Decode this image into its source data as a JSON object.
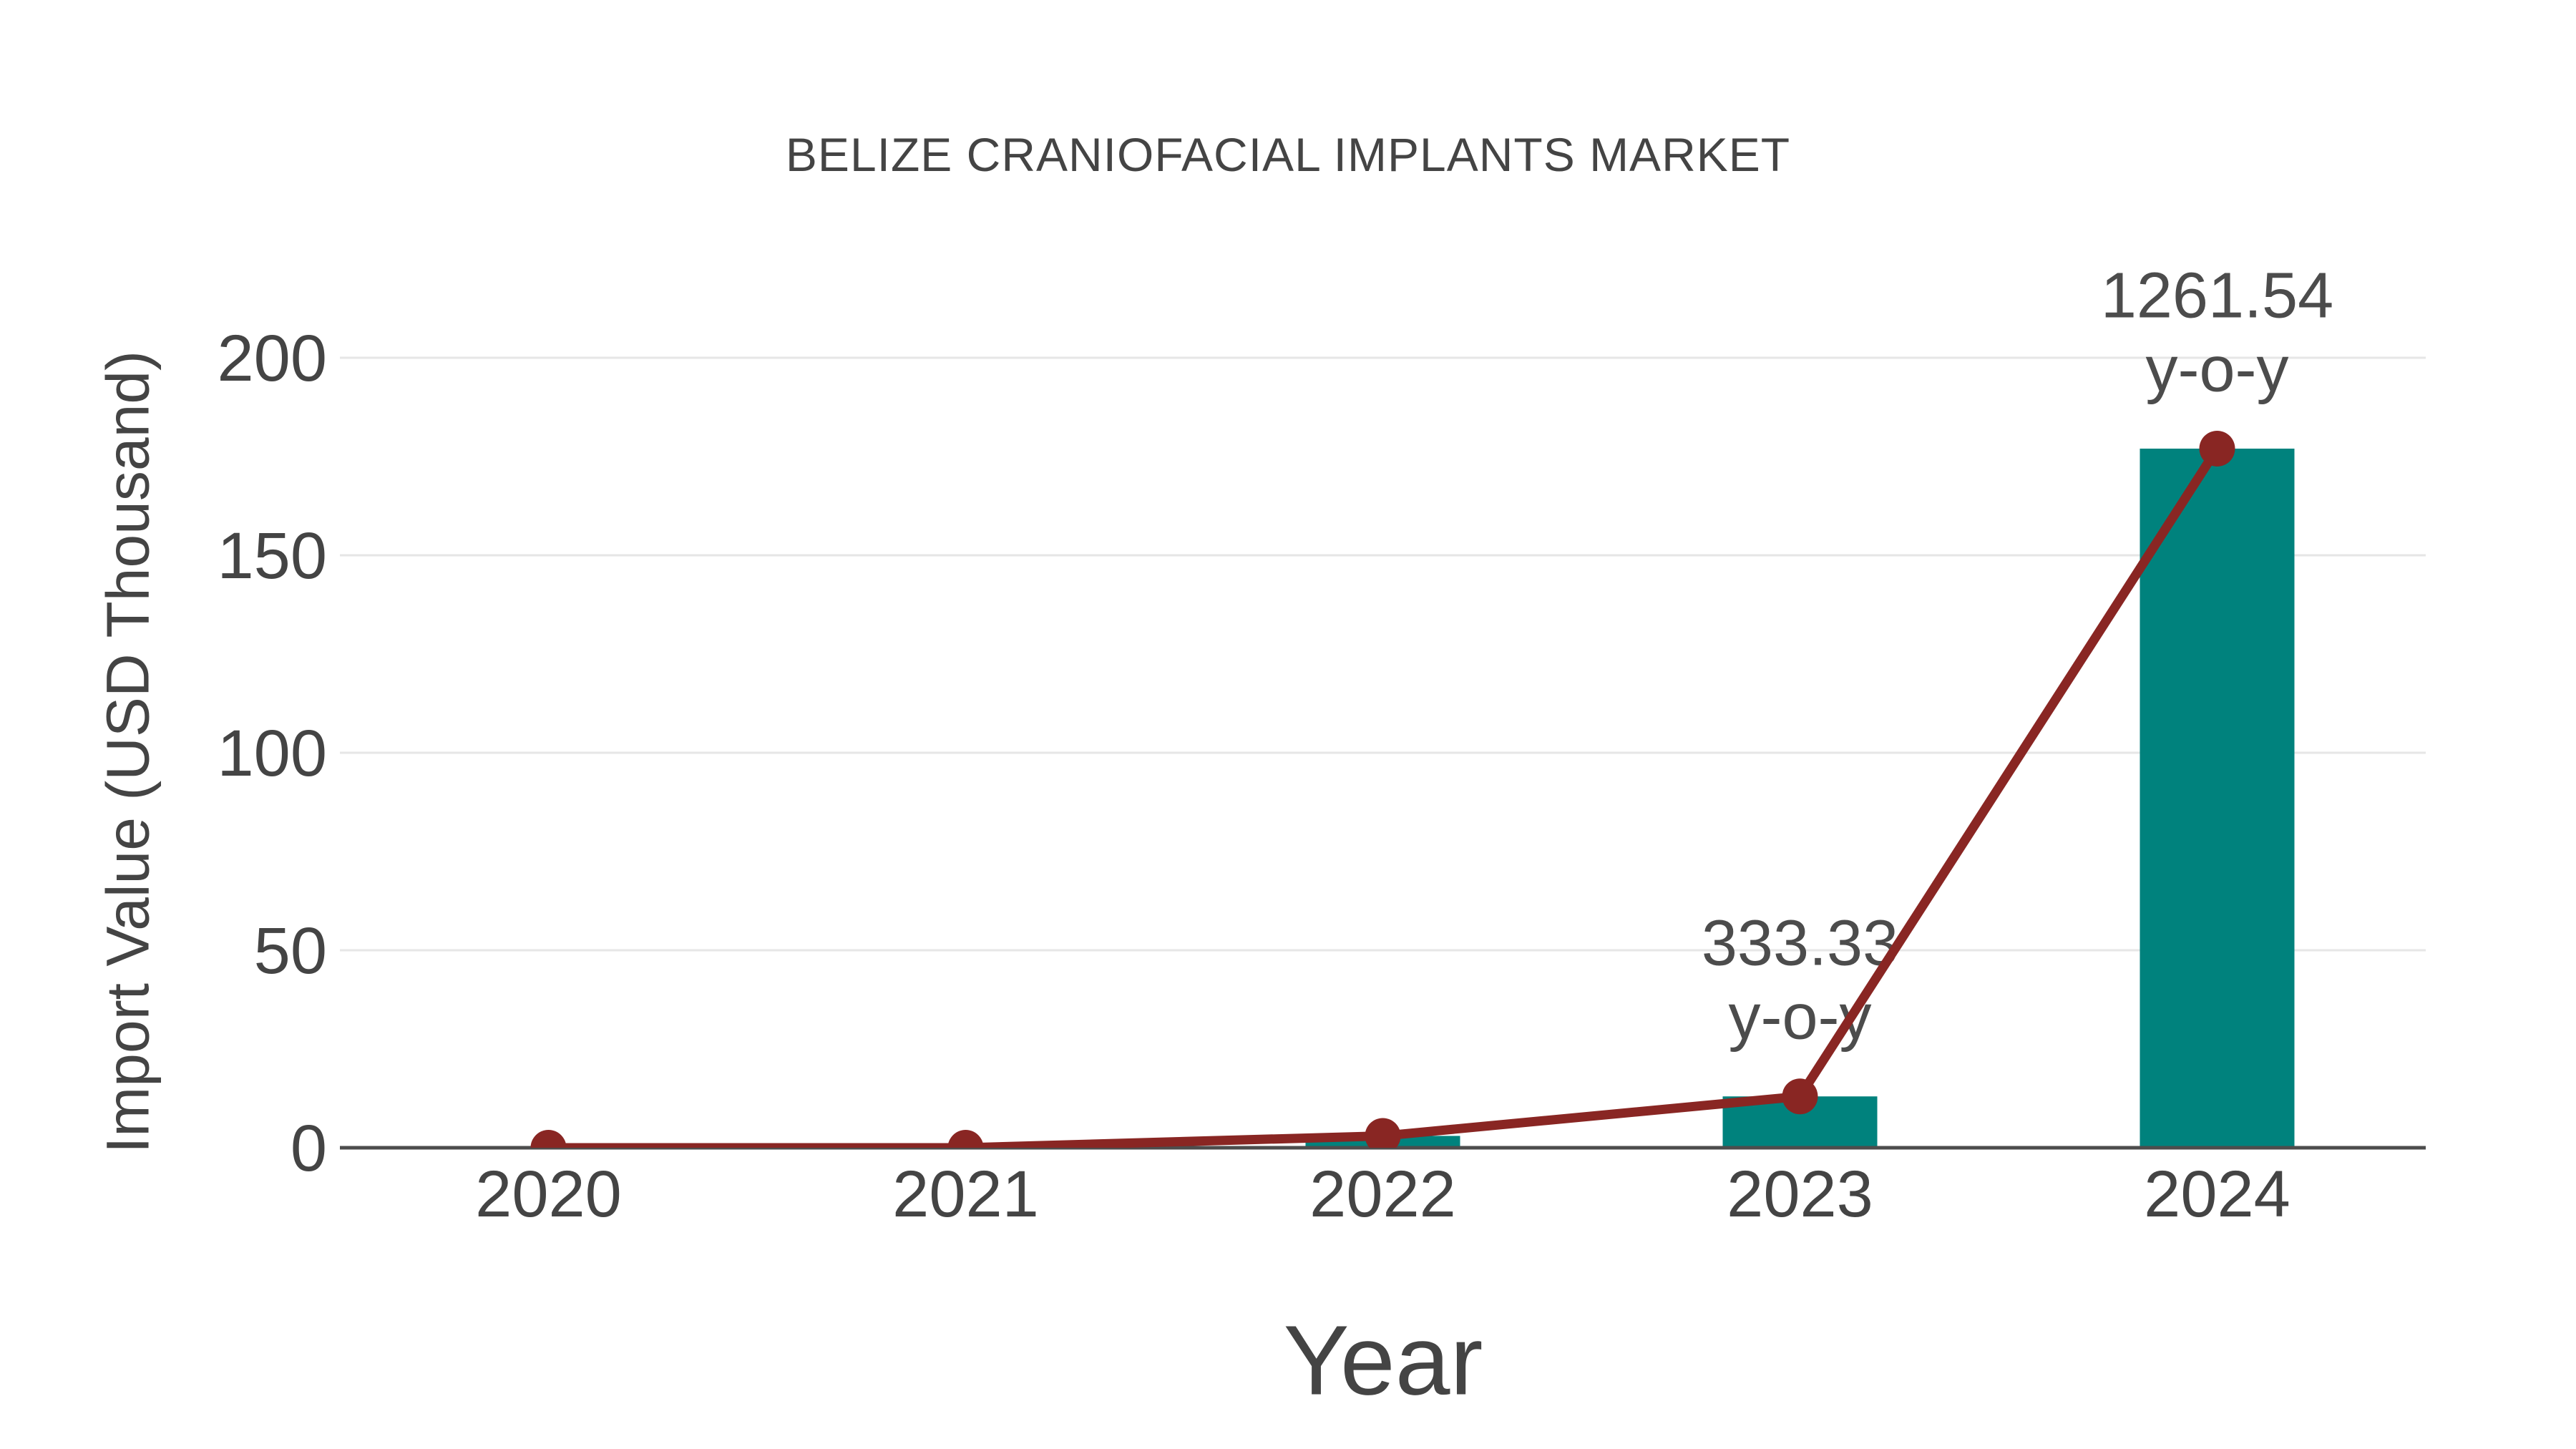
{
  "page": {
    "background": "#ffffff"
  },
  "chart_data": {
    "type": "bar",
    "title": "BELIZE CRANIOFACIAL IMPLANTS MARKET",
    "xlabel": "Year",
    "ylabel": "Import Value (USD Thousand)",
    "categories": [
      "2020",
      "2021",
      "2022",
      "2023",
      "2024"
    ],
    "series": [
      {
        "name": "import-value-bars",
        "type": "bar",
        "values": [
          0,
          0,
          3,
          13,
          177
        ],
        "color": "#00827D"
      },
      {
        "name": "import-value-line",
        "type": "line",
        "values": [
          0,
          0,
          3,
          13,
          177
        ],
        "color": "#892623"
      }
    ],
    "annotations": [
      {
        "category": "2023",
        "lines": [
          "333.33",
          "y-o-y"
        ]
      },
      {
        "category": "2024",
        "lines": [
          "1261.54",
          "y-o-y"
        ]
      }
    ],
    "yticks": [
      0,
      50,
      100,
      150,
      200
    ],
    "ylim": [
      0,
      200
    ],
    "grid": true,
    "legend": "none",
    "colors": {
      "bar": "#00827D",
      "line": "#892623",
      "marker": "#892623",
      "grid": "#E6E6E6",
      "axis_line": "#4D4D4D",
      "tick_text": "#444444",
      "title_text": "#444444",
      "annotation_text": "#4C4C4C",
      "background": "#FFFFFF"
    }
  }
}
